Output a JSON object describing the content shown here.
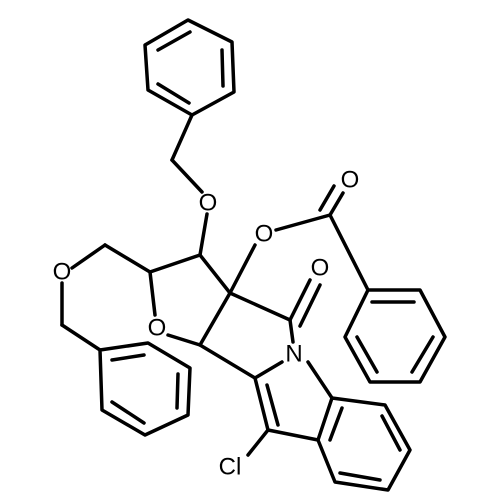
{
  "nodes": [
    {
      "label": "O"
    },
    {
      "label": "O"
    },
    {
      "label": "O"
    },
    {
      "label": "O"
    },
    {
      "label": "O"
    },
    {
      "label": "O"
    },
    {
      "label": "N"
    },
    {
      "label": "Cl"
    }
  ]
}
